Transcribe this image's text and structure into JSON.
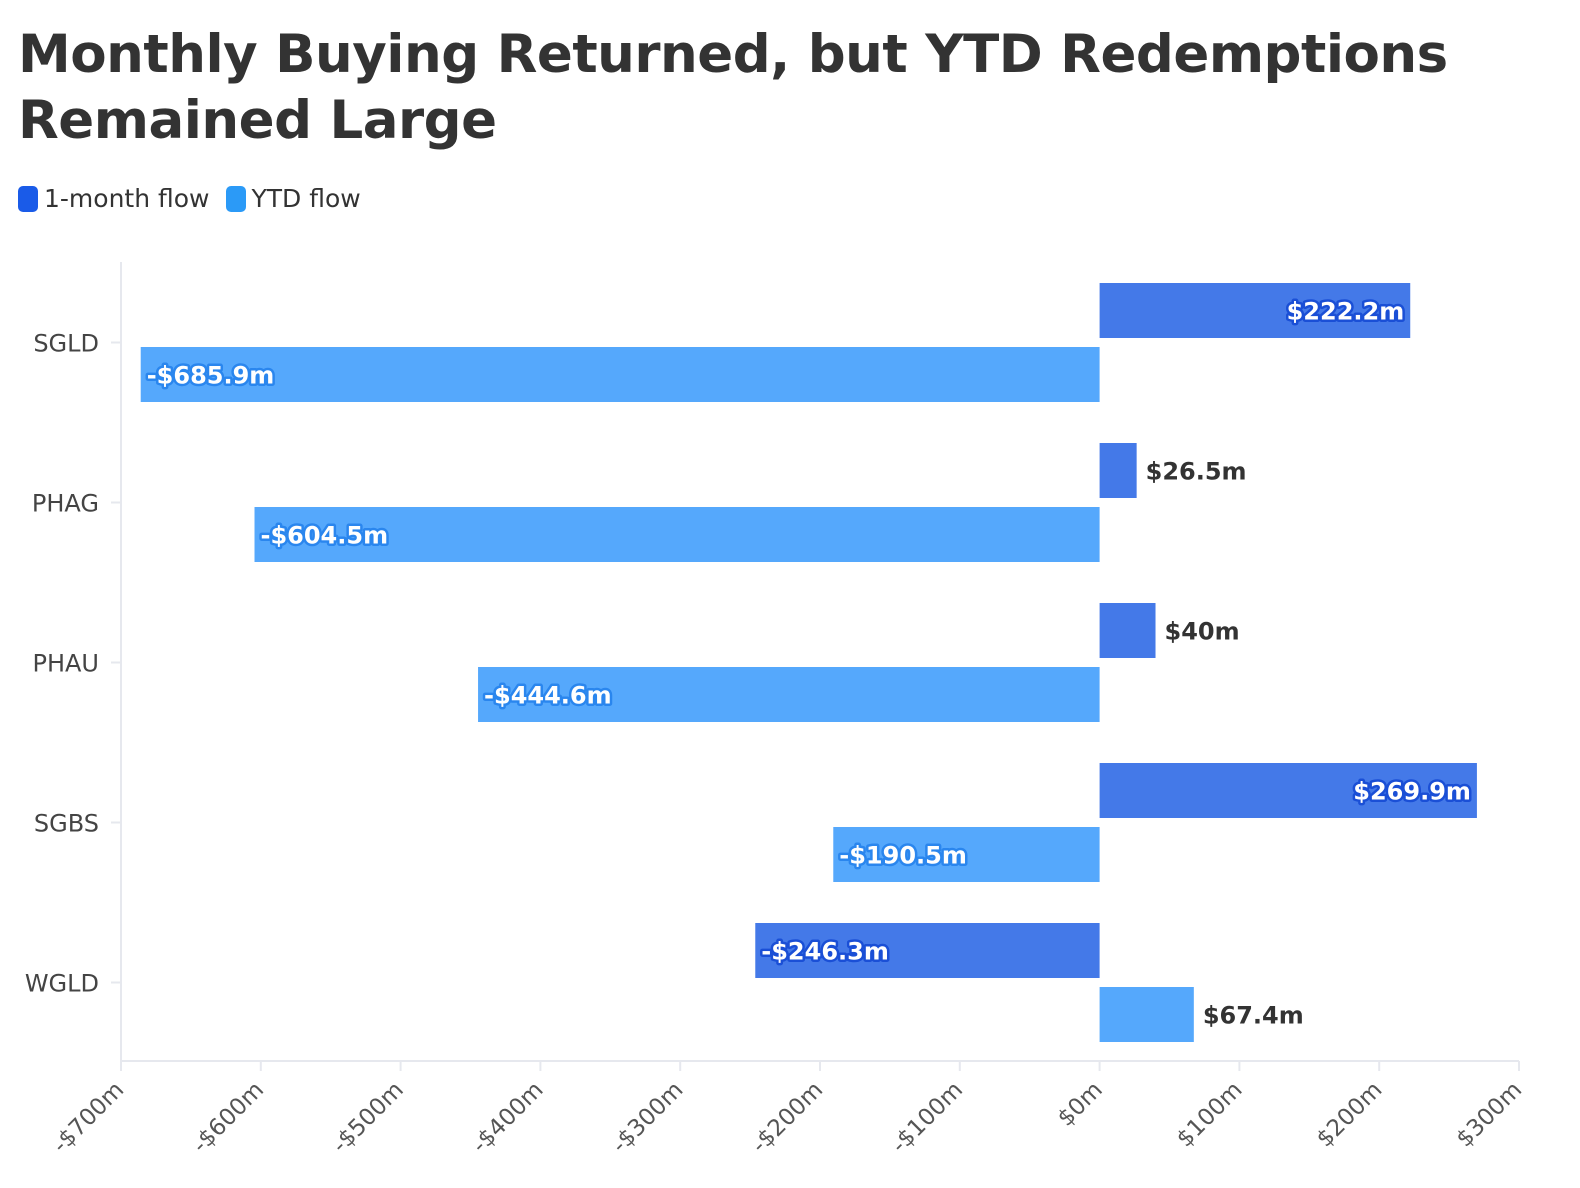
{
  "chart_data": {
    "type": "bar",
    "orientation": "horizontal",
    "title": "Monthly Buying Returned, but YTD Redemptions Remained Large",
    "categories": [
      "SGLD",
      "PHAG",
      "PHAU",
      "SGBS",
      "WGLD"
    ],
    "series": [
      {
        "name": "1-month flow",
        "color": "#4479e8",
        "legend_color": "#1a5be8",
        "label_outline": "#1a4fd6",
        "values": [
          222.2,
          26.5,
          40,
          269.9,
          -246.3
        ],
        "labels": [
          "$222.2m",
          "$26.5m",
          "$40m",
          "$269.9m",
          "-$246.3m"
        ]
      },
      {
        "name": "YTD flow",
        "color": "#55a8fc",
        "legend_color": "#2b9af7",
        "label_outline": "#2a86ee",
        "values": [
          -685.9,
          -604.5,
          -444.6,
          -190.5,
          67.4
        ],
        "labels": [
          "-$685.9m",
          "-$604.5m",
          "-$444.6m",
          "-$190.5m",
          "$67.4m"
        ]
      }
    ],
    "xlim": [
      -700,
      300
    ],
    "xticks": [
      -700,
      -600,
      -500,
      -400,
      -300,
      -200,
      -100,
      0,
      100,
      200,
      300
    ],
    "xtick_labels": [
      "-$700m",
      "-$600m",
      "-$500m",
      "-$400m",
      "-$300m",
      "-$200m",
      "-$100m",
      "$0m",
      "$100m",
      "$200m",
      "$300m"
    ],
    "xlabel": "",
    "ylabel": "",
    "grid": false,
    "legend_position": "top-left",
    "axis_color": "#e6e8ee"
  }
}
